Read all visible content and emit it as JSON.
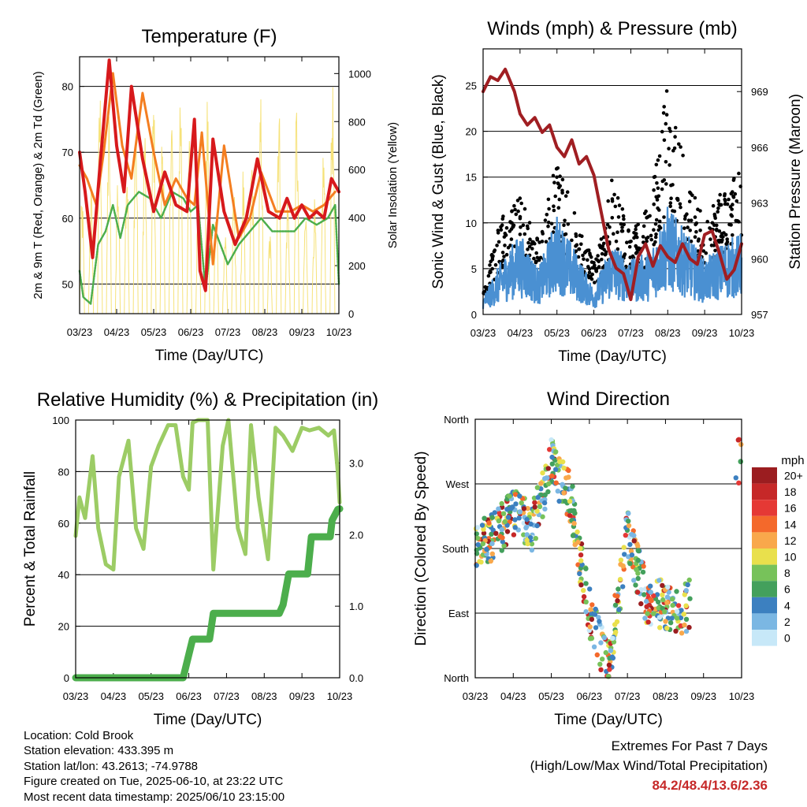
{
  "colors": {
    "temp_2m": "#d7191c",
    "temp_9m": "#f47e20",
    "dewpoint": "#4cae4c",
    "solar": "#f6e27a",
    "wind": "#4a90d2",
    "gust": "#000000",
    "pressure": "#a01e22",
    "rh": "#9ccc65",
    "precip": "#4cae4c",
    "extremes": "#c62828"
  },
  "time_axis": {
    "ticks": [
      "03/23",
      "04/23",
      "05/23",
      "06/23",
      "07/23",
      "08/23",
      "09/23",
      "10/23"
    ],
    "xlabel": "Time (Day/UTC)"
  },
  "chart_data": [
    {
      "id": "temperature",
      "type": "line",
      "title": "Temperature (F)",
      "xlabel": "Time (Day/UTC)",
      "ylabel": "2m & 9m T (Red, Orange) & 2m Td (Green)",
      "y2label": "Solar Insolation (Yellow)",
      "categories": [
        "03/23",
        "04/23",
        "05/23",
        "06/23",
        "07/23",
        "08/23",
        "09/23",
        "10/23"
      ],
      "ylim": [
        45.5,
        84.5
      ],
      "y_ticks": [
        50,
        60,
        70,
        80
      ],
      "y2lim": [
        0,
        1070
      ],
      "y2_ticks": [
        0,
        200,
        400,
        600,
        800,
        1000
      ],
      "grid": true,
      "series": [
        {
          "axis": "left",
          "color": "#d7191c",
          "width": 4,
          "x": [
            0,
            0.15,
            0.35,
            0.55,
            0.8,
            1.0,
            1.2,
            1.4,
            1.7,
            2.0,
            2.3,
            2.6,
            2.9,
            3.1,
            3.25,
            3.4,
            3.6,
            3.9,
            4.2,
            4.5,
            4.8,
            5.1,
            5.4,
            5.6,
            5.8,
            6.0,
            6.2,
            6.4,
            6.6,
            6.8,
            7.0
          ],
          "y": [
            70,
            64,
            54,
            68,
            84,
            71,
            64,
            80,
            69,
            61,
            67,
            62,
            61,
            75,
            52,
            49,
            72,
            61,
            56,
            60,
            69,
            61,
            60,
            63,
            60,
            62,
            60,
            61,
            60,
            66,
            64
          ]
        },
        {
          "axis": "left",
          "color": "#f47e20",
          "width": 3,
          "x": [
            0,
            0.2,
            0.45,
            0.65,
            0.9,
            1.15,
            1.4,
            1.7,
            2.0,
            2.3,
            2.6,
            2.9,
            3.1,
            3.3,
            3.6,
            3.9,
            4.3,
            4.6,
            4.9,
            5.3,
            5.7,
            6.0,
            6.3,
            6.6,
            6.9
          ],
          "y": [
            68,
            66,
            62,
            70,
            82,
            71,
            66,
            79,
            70,
            62,
            66,
            63,
            62,
            73,
            53,
            71,
            57,
            60,
            67,
            61,
            61,
            62,
            61,
            62,
            64
          ]
        },
        {
          "axis": "left",
          "color": "#4cae4c",
          "width": 2.5,
          "x": [
            0,
            0.1,
            0.3,
            0.5,
            0.7,
            0.9,
            1.1,
            1.3,
            1.6,
            1.9,
            2.2,
            2.5,
            2.8,
            3.0,
            3.2,
            3.4,
            3.6,
            3.8,
            4.0,
            4.3,
            4.6,
            4.9,
            5.2,
            5.5,
            5.8,
            6.1,
            6.4,
            6.7,
            6.9,
            7.0
          ],
          "y": [
            52,
            48,
            47,
            56,
            58,
            62,
            57,
            62,
            64,
            63,
            60,
            64,
            63,
            61,
            62,
            49,
            59,
            56,
            53,
            56,
            58,
            60,
            58,
            58,
            58,
            60,
            59,
            60,
            62,
            50
          ]
        },
        {
          "axis": "right",
          "color": "#f6e27a",
          "width": 1,
          "style": "diurnal",
          "peaks": [
            520,
            560,
            1000,
            870,
            640,
            740,
            900,
            830,
            960,
            880,
            940,
            1040,
            780,
            560,
            930,
            480,
            380,
            530,
            620,
            720,
            940,
            360,
            980,
            520,
            920,
            460,
            480,
            740,
            1010
          ]
        }
      ]
    },
    {
      "id": "winds",
      "type": "scatter",
      "title": "Winds (mph) & Pressure (mb)",
      "xlabel": "Time (Day/UTC)",
      "ylabel": "Sonic Wind & Gust (Blue, Black)",
      "y2label": "Station Pressure (Maroon)",
      "categories": [
        "03/23",
        "04/23",
        "05/23",
        "06/23",
        "07/23",
        "08/23",
        "09/23",
        "10/23"
      ],
      "ylim": [
        0,
        29
      ],
      "y_ticks": [
        0,
        5,
        10,
        15,
        20,
        25
      ],
      "y2lim": [
        957,
        971.3
      ],
      "y2_ticks": [
        957,
        960,
        963,
        966,
        969
      ],
      "grid": true,
      "series": [
        {
          "name": "gust",
          "axis": "left",
          "color": "#000000",
          "x": [
            0,
            0.5,
            1.0,
            1.5,
            2.0,
            2.5,
            3.0,
            3.5,
            4.0,
            4.5,
            5.0,
            5.5,
            6.0,
            6.5,
            7.0
          ],
          "y": [
            3,
            11,
            14,
            8,
            17,
            11,
            6,
            15,
            9,
            12,
            26,
            16,
            10,
            14,
            16
          ]
        },
        {
          "name": "wind",
          "axis": "left",
          "color": "#4a90d2",
          "x": [
            0,
            0.5,
            1.0,
            1.5,
            2.0,
            2.5,
            3.0,
            3.5,
            4.0,
            4.5,
            5.0,
            5.5,
            6.0,
            6.5,
            7.0
          ],
          "y": [
            2,
            6,
            9,
            5,
            11,
            7,
            3,
            8,
            6,
            7,
            12,
            9,
            6,
            8,
            9
          ]
        },
        {
          "name": "pressure",
          "axis": "right",
          "color": "#a01e22",
          "x": [
            0,
            0.2,
            0.4,
            0.6,
            0.85,
            1.0,
            1.2,
            1.4,
            1.6,
            1.8,
            2.0,
            2.2,
            2.4,
            2.6,
            2.8,
            3.0,
            3.2,
            3.4,
            3.6,
            3.8,
            4.0,
            4.2,
            4.4,
            4.6,
            4.8,
            5.0,
            5.2,
            5.4,
            5.6,
            5.8,
            6.0,
            6.2,
            6.4,
            6.6,
            6.8,
            7.0
          ],
          "y": [
            969,
            969.8,
            969.6,
            970.2,
            969,
            967.8,
            967.2,
            967.6,
            966.8,
            967.2,
            966,
            965.5,
            966.4,
            965.1,
            965.5,
            964.5,
            962.5,
            960.5,
            959.5,
            959.2,
            957.8,
            960.1,
            960.8,
            959.6,
            960.7,
            960.1,
            959.8,
            960.8,
            960.0,
            959.7,
            961.3,
            961.5,
            960.3,
            958.9,
            959.4,
            960.8
          ]
        }
      ]
    },
    {
      "id": "humidity",
      "type": "line",
      "title": "Relative Humidity (%) & Precipitation (in)",
      "xlabel": "Time (Day/UTC)",
      "ylabel": "Percent & Total Rainfall",
      "categories": [
        "03/23",
        "04/23",
        "05/23",
        "06/23",
        "07/23",
        "08/23",
        "09/23",
        "10/23"
      ],
      "ylim": [
        0,
        100
      ],
      "y_ticks": [
        0,
        20,
        40,
        60,
        80,
        100
      ],
      "y2lim": [
        0,
        3.6
      ],
      "y2_ticks": [
        "0.0",
        "1.0",
        "2.0",
        "3.0"
      ],
      "grid": true,
      "series": [
        {
          "name": "rh",
          "axis": "left",
          "color": "#9ccc65",
          "width": 5,
          "x": [
            0,
            0.1,
            0.25,
            0.45,
            0.6,
            0.8,
            1.0,
            1.15,
            1.4,
            1.6,
            1.8,
            2.0,
            2.2,
            2.45,
            2.65,
            2.85,
            3.0,
            3.1,
            3.25,
            3.5,
            3.65,
            3.9,
            4.05,
            4.3,
            4.5,
            4.65,
            4.85,
            5.1,
            5.3,
            5.5,
            5.75,
            6.0,
            6.2,
            6.45,
            6.7,
            6.85,
            6.95,
            7.0
          ],
          "y": [
            55,
            70,
            62,
            86,
            58,
            44,
            42,
            78,
            92,
            58,
            50,
            82,
            90,
            98,
            98,
            78,
            73,
            99,
            100,
            100,
            42,
            90,
            100,
            58,
            48,
            98,
            70,
            46,
            97,
            94,
            88,
            97,
            96,
            97,
            94,
            96,
            80,
            68
          ]
        },
        {
          "name": "precip",
          "axis": "right",
          "color": "#4cae4c",
          "width": 9,
          "style": "step",
          "x": [
            0,
            1.2,
            2.2,
            2.85,
            3.1,
            3.15,
            3.55,
            3.65,
            5.4,
            5.5,
            5.65,
            5.8,
            6.15,
            6.25,
            6.75,
            6.8,
            6.95,
            7.0
          ],
          "y": [
            0,
            0,
            0,
            0,
            0.54,
            0.54,
            0.54,
            0.9,
            0.9,
            1.02,
            1.45,
            1.45,
            1.45,
            1.97,
            1.97,
            2.2,
            2.35,
            2.36
          ]
        }
      ]
    },
    {
      "id": "direction",
      "type": "scatter",
      "title": "Wind Direction",
      "xlabel": "Time (Day/UTC)",
      "ylabel": "Direction (Colored By Speed)",
      "categories": [
        "03/23",
        "04/23",
        "05/23",
        "06/23",
        "07/23",
        "08/23",
        "09/23",
        "10/23"
      ],
      "ylim": [
        0,
        360
      ],
      "y_tick_labels": [
        "North",
        "East",
        "South",
        "West",
        "North"
      ],
      "grid": true,
      "legend": {
        "title": "mph",
        "placement": "right",
        "levels": [
          "20+",
          "18",
          "16",
          "14",
          "12",
          "10",
          "8",
          "6",
          "4",
          "2",
          "0"
        ],
        "colors": [
          "#9b1d20",
          "#c62828",
          "#e53935",
          "#f4692b",
          "#f9a84b",
          "#e9e04c",
          "#77c25a",
          "#43a05c",
          "#3c80c0",
          "#7bb7e3",
          "#c7e8f8"
        ]
      },
      "series": [
        {
          "name": "direction",
          "x": [
            0,
            0.5,
            1.0,
            1.5,
            2.0,
            2.5,
            3.0,
            3.5,
            4.0,
            4.5,
            5.0,
            5.5,
            6.0,
            6.5,
            7.0
          ],
          "y": [
            175,
            200,
            230,
            210,
            300,
            250,
            90,
            15,
            200,
            110,
            100,
            95,
            120,
            165,
            330
          ]
        }
      ]
    }
  ],
  "info": {
    "location": "Location: Cold Brook",
    "elevation": "Station elevation: 433.395 m",
    "latlon": "Station lat/lon: 43.2613; -74.9788",
    "created": "Figure created on Tue, 2025-06-10, at 23:22 UTC",
    "recent": "Most recent data timestamp: 2025/06/10 23:15:00"
  },
  "extremes": {
    "title": "Extremes For Past 7 Days",
    "subtitle": "(High/Low/Max Wind/Total Precipitation)",
    "values": "84.2/48.4/13.6/2.36"
  }
}
